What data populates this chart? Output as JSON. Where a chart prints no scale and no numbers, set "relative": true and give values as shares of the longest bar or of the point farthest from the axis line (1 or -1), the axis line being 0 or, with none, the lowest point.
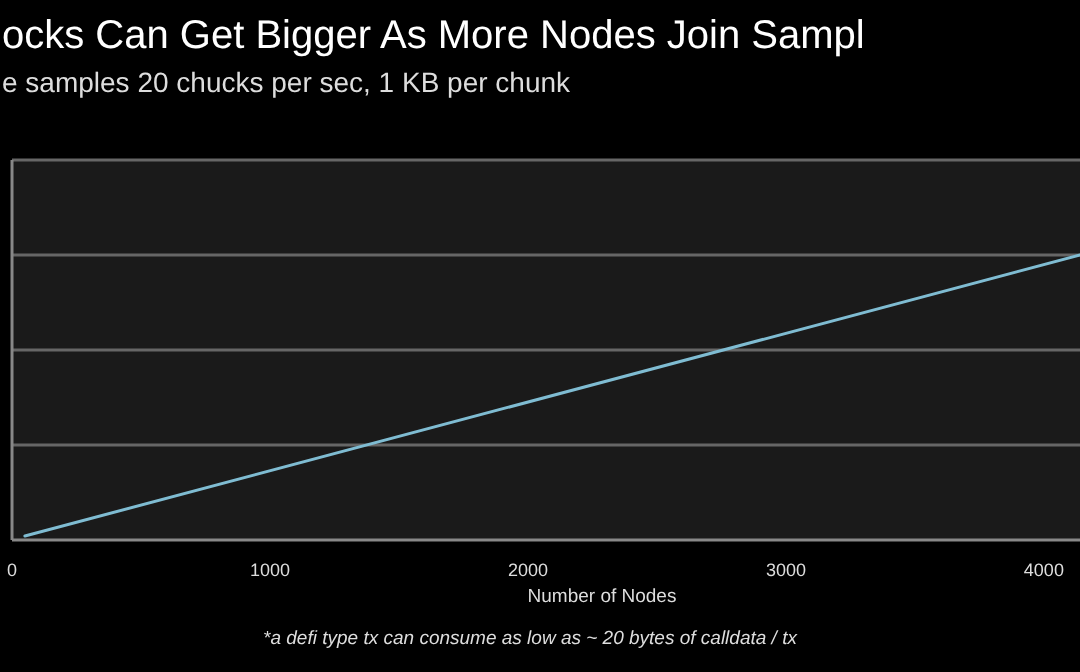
{
  "chart_data": {
    "type": "line",
    "title": "ocks Can Get Bigger As More Nodes Join Sampl",
    "subtitle": "e samples 20 chucks per sec, 1 KB per chunk",
    "xlabel": "Number of Nodes",
    "annotations": [
      "*a defi type tx can consume as low as ~ 20 bytes of calldata / tx"
    ],
    "relative": true,
    "x": [
      50,
      4140
    ],
    "xlim": [
      0,
      4140
    ],
    "xticks": [
      0,
      1000,
      2000,
      3000,
      4000
    ],
    "ref_lines": [
      {
        "axis": "y",
        "value": 0.333,
        "color": "#666666"
      },
      {
        "axis": "y",
        "value": 0.667,
        "color": "#666666"
      },
      {
        "axis": "y",
        "value": 1,
        "color": "#666666"
      },
      {
        "axis": "y",
        "value": 1.333,
        "color": "#666666"
      }
    ],
    "marker": "none",
    "line_style": "solid",
    "series": [
      {
        "color": "#7fbcd2",
        "values": [
          0.014,
          1
        ]
      }
    ]
  }
}
